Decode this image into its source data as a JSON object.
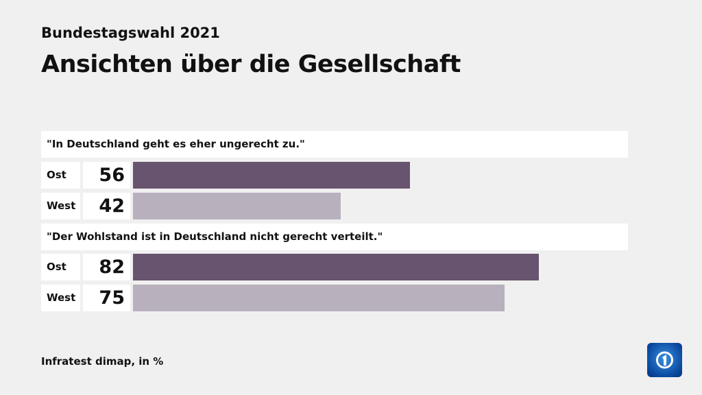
{
  "subtitle": "Bundestagswahl 2021",
  "title": "Ansichten über die Gesellschaft",
  "source": "Infratest dimap, in %",
  "colors": {
    "Ost": "#68546f",
    "West": "#b8b0bc"
  },
  "chart_data": {
    "type": "bar",
    "xlim": [
      0,
      100
    ],
    "groups": [
      {
        "question": "\"In Deutschland geht es eher ungerecht zu.\"",
        "rows": [
          {
            "label": "Ost",
            "value": 56
          },
          {
            "label": "West",
            "value": 42
          }
        ]
      },
      {
        "question": "\"Der Wohlstand ist in Deutschland nicht gerecht verteilt.\"",
        "rows": [
          {
            "label": "Ost",
            "value": 82
          },
          {
            "label": "West",
            "value": 75
          }
        ]
      }
    ]
  }
}
